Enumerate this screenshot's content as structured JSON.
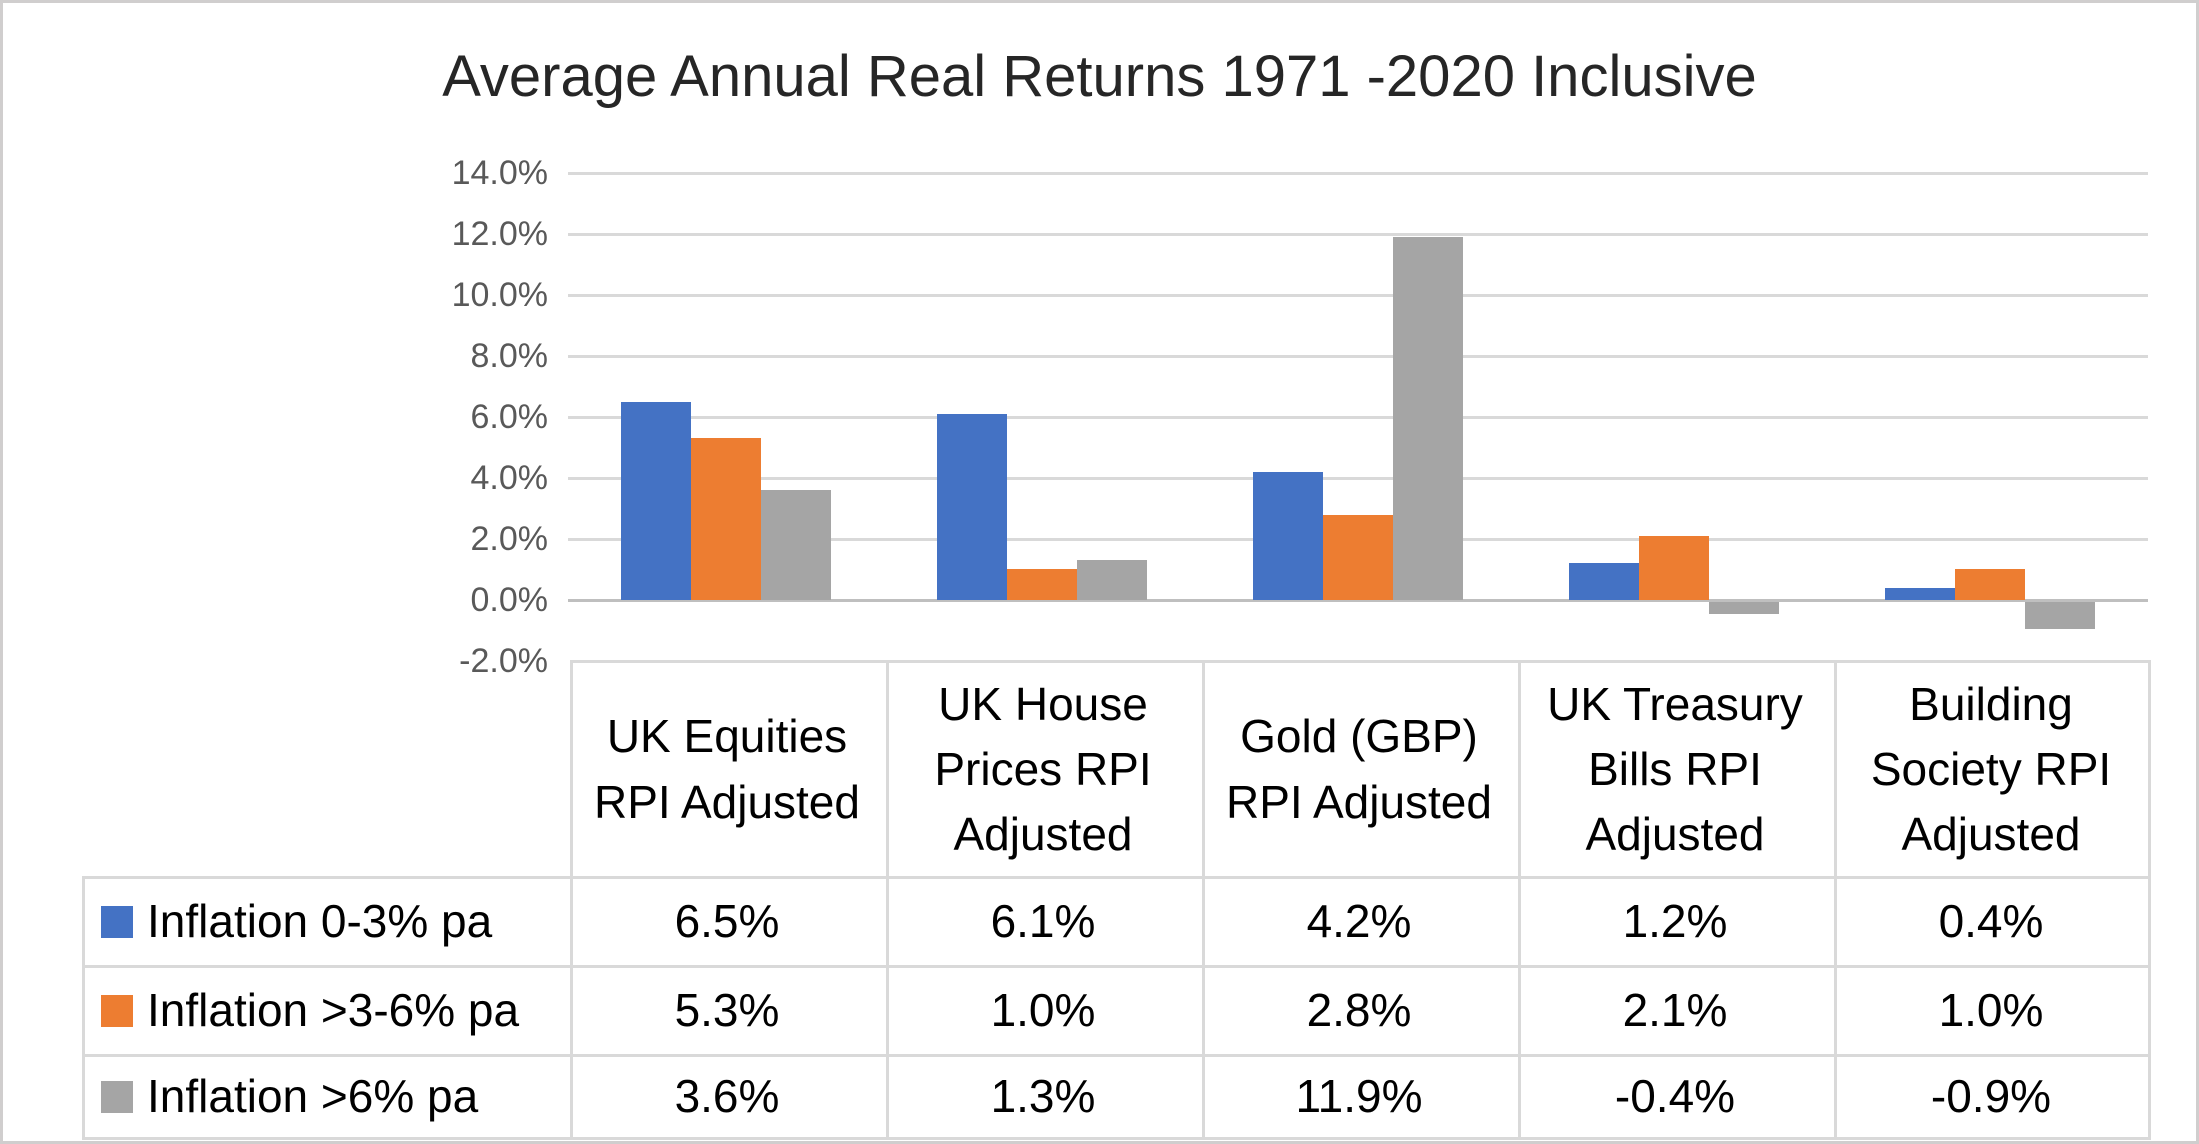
{
  "frame": {
    "background": "#FFFFFF",
    "border_color": "#D0CECE"
  },
  "chart_data": {
    "type": "bar",
    "title": "Average Annual Real Returns 1971 -2020 Inclusive",
    "categories": [
      "UK Equities RPI Adjusted",
      "UK House Prices RPI Adjusted",
      "Gold (GBP) RPI Adjusted",
      "UK Treasury Bills RPI Adjusted",
      "Building Society RPI Adjusted"
    ],
    "series": [
      {
        "name": "Inflation 0-3% pa",
        "color": "#4472C4",
        "values": [
          6.5,
          6.1,
          4.2,
          1.2,
          0.4
        ]
      },
      {
        "name": "Inflation >3-6% pa",
        "color": "#ED7D31",
        "values": [
          5.3,
          1.0,
          2.8,
          2.1,
          1.0
        ]
      },
      {
        "name": "Inflation >6% pa",
        "color": "#A5A5A5",
        "values": [
          3.6,
          1.3,
          11.9,
          -0.4,
          -0.9
        ]
      }
    ],
    "y_axis": {
      "min": -2,
      "max": 14,
      "step": 2,
      "tick_labels": [
        "14.0%",
        "12.0%",
        "10.0%",
        "8.0%",
        "6.0%",
        "4.0%",
        "2.0%",
        "0.0%",
        "-2.0%"
      ],
      "label_color": "#595959"
    },
    "value_suffix": "%",
    "grid": true,
    "gridline_color": "#D9D9D9",
    "axis_line_color": "#BFBFBF",
    "legend_position": "table-left",
    "data_table": {
      "shown": true,
      "border_color": "#D9D9D9",
      "text_color": "#000000",
      "cell_values": [
        [
          "6.5%",
          "6.1%",
          "4.2%",
          "1.2%",
          "0.4%"
        ],
        [
          "5.3%",
          "1.0%",
          "2.8%",
          "2.1%",
          "1.0%"
        ],
        [
          "3.6%",
          "1.3%",
          "11.9%",
          "-0.4%",
          "-0.9%"
        ]
      ]
    },
    "title_color": "#262626"
  }
}
